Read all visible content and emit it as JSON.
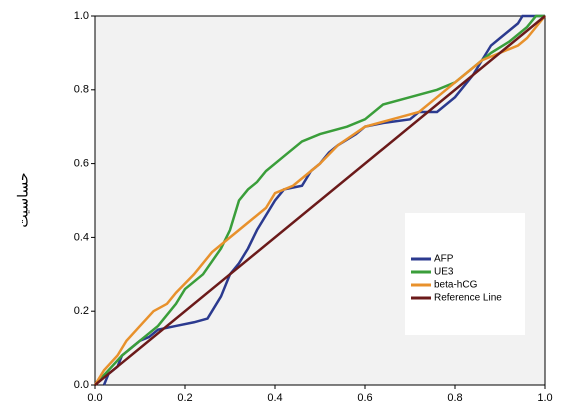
{
  "chart_data": {
    "type": "line",
    "y_label": "حساسيت",
    "xlim": [
      0,
      1
    ],
    "ylim": [
      0,
      1
    ],
    "xticks": [
      {
        "value": 0,
        "label": "0.0"
      },
      {
        "value": 0.2,
        "label": "0.2"
      },
      {
        "value": 0.4,
        "label": "0.4"
      },
      {
        "value": 0.6,
        "label": "0.6"
      },
      {
        "value": 0.8,
        "label": "0.8"
      },
      {
        "value": 1,
        "label": "1.0"
      }
    ],
    "yticks": [
      {
        "value": 0,
        "label": "0.0"
      },
      {
        "value": 0.2,
        "label": "0.2"
      },
      {
        "value": 0.4,
        "label": "0.4"
      },
      {
        "value": 0.6,
        "label": "0.6"
      },
      {
        "value": 0.8,
        "label": "0.8"
      },
      {
        "value": 1,
        "label": "1.0"
      }
    ],
    "legend": "right",
    "series": [
      {
        "name": "AFP",
        "color": "#2b3a8f",
        "x": [
          0.02,
          0.03,
          0.05,
          0.06,
          0.08,
          0.1,
          0.12,
          0.14,
          0.18,
          0.22,
          0.25,
          0.26,
          0.28,
          0.3,
          0.32,
          0.34,
          0.36,
          0.38,
          0.4,
          0.42,
          0.46,
          0.48,
          0.5,
          0.52,
          0.54,
          0.58,
          0.6,
          0.64,
          0.7,
          0.72,
          0.76,
          0.8,
          0.84,
          0.86,
          0.88,
          0.9,
          0.92,
          0.94,
          0.95,
          1
        ],
        "values": [
          0,
          0.03,
          0.05,
          0.08,
          0.1,
          0.12,
          0.13,
          0.15,
          0.16,
          0.17,
          0.18,
          0.2,
          0.24,
          0.3,
          0.33,
          0.37,
          0.42,
          0.46,
          0.5,
          0.53,
          0.54,
          0.58,
          0.6,
          0.63,
          0.65,
          0.68,
          0.7,
          0.71,
          0.72,
          0.74,
          0.74,
          0.78,
          0.84,
          0.88,
          0.92,
          0.94,
          0.96,
          0.98,
          1,
          1
        ]
      },
      {
        "name": "UE3",
        "color": "#3a9e3a",
        "x": [
          0,
          0.03,
          0.06,
          0.1,
          0.14,
          0.18,
          0.2,
          0.24,
          0.28,
          0.3,
          0.32,
          0.34,
          0.36,
          0.38,
          0.42,
          0.46,
          0.5,
          0.56,
          0.6,
          0.64,
          0.7,
          0.76,
          0.8,
          0.84,
          0.88,
          0.92,
          0.96,
          0.98,
          1
        ],
        "values": [
          0,
          0.04,
          0.08,
          0.12,
          0.16,
          0.22,
          0.26,
          0.3,
          0.37,
          0.42,
          0.5,
          0.53,
          0.55,
          0.58,
          0.62,
          0.66,
          0.68,
          0.7,
          0.72,
          0.76,
          0.78,
          0.8,
          0.82,
          0.86,
          0.9,
          0.93,
          0.97,
          1,
          1
        ]
      },
      {
        "name": "beta-hCG",
        "color": "#e8912c",
        "x": [
          0,
          0.02,
          0.05,
          0.07,
          0.1,
          0.13,
          0.16,
          0.18,
          0.22,
          0.26,
          0.3,
          0.34,
          0.38,
          0.4,
          0.44,
          0.48,
          0.5,
          0.54,
          0.6,
          0.66,
          0.72,
          0.78,
          0.82,
          0.86,
          0.9,
          0.94,
          0.96,
          1
        ],
        "values": [
          0,
          0.04,
          0.08,
          0.12,
          0.16,
          0.2,
          0.22,
          0.25,
          0.3,
          0.36,
          0.4,
          0.44,
          0.48,
          0.52,
          0.54,
          0.58,
          0.6,
          0.65,
          0.7,
          0.72,
          0.74,
          0.8,
          0.84,
          0.88,
          0.9,
          0.92,
          0.94,
          1
        ]
      },
      {
        "name": "Reference Line",
        "color": "#6b1a1a",
        "x": [
          0,
          1
        ],
        "values": [
          0,
          1
        ]
      }
    ]
  }
}
